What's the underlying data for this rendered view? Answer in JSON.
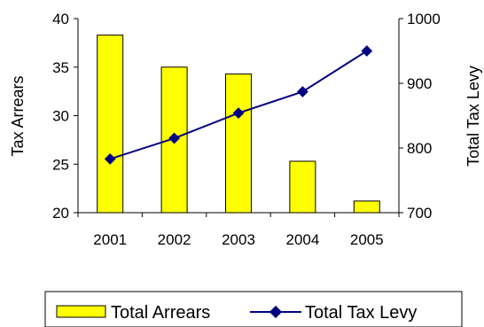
{
  "chart_data": {
    "type": "bar",
    "categories": [
      "2001",
      "2002",
      "2003",
      "2004",
      "2005"
    ],
    "series": [
      {
        "name": "Total Arrears",
        "type": "bar",
        "axis": "left",
        "values": [
          38.3,
          35.0,
          34.3,
          25.3,
          21.2
        ],
        "color": "#FFFF00"
      },
      {
        "name": "Total Tax Levy",
        "type": "line",
        "axis": "right",
        "values": [
          783,
          815,
          854,
          887,
          950
        ],
        "color": "#000080"
      }
    ],
    "ylabel": "Tax Arrears",
    "y2label": "Total Tax Levy",
    "ylim": [
      20,
      40
    ],
    "y2lim": [
      700,
      1000
    ],
    "yticks": [
      "20",
      "25",
      "30",
      "35",
      "40"
    ],
    "y2ticks": [
      "700",
      "800",
      "900",
      "1000"
    ],
    "legend_position": "bottom",
    "grid": false
  }
}
